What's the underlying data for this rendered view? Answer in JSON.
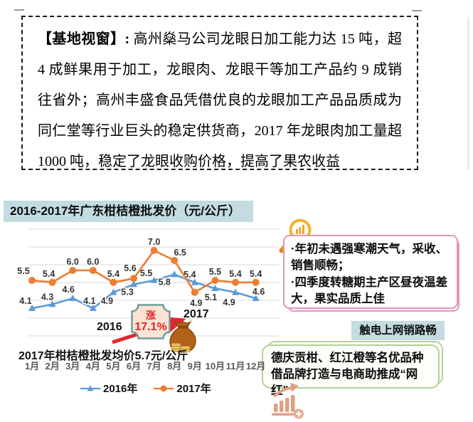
{
  "report_box": {
    "label": "【基地视窗】: ",
    "body": "高州燊马公司龙眼日加工能力达 15 吨，超 4 成鲜果用于加工，龙眼肉、龙眼干等加工产品约 9 成销往省外；高州丰盛食品凭借优良的龙眼加工产品品质成为同仁堂等行业巨头的稳定供货商，2017 年龙眼肉加工量超 1000 吨，稳定了龙眼收购价格，提高了果农收益"
  },
  "chart": {
    "title": "2016-2017年广东柑桔橙批发价（元/公斤）",
    "avg_note": "2017年柑桔橙批发均价5.7元/公斤",
    "rise_badge": {
      "word": "涨",
      "value": "17.1%"
    },
    "year_from": "2016",
    "year_to": "2017"
  },
  "chart_data": {
    "type": "line",
    "title": "2016-2017年广东柑桔橙批发价（元/公斤）",
    "unit": "元/公斤",
    "categories": [
      "1月",
      "2月",
      "3月",
      "4月",
      "5月",
      "6月",
      "7月",
      "8月",
      "9月",
      "10月",
      "11月",
      "12月"
    ],
    "series": [
      {
        "name": "2016年",
        "color": "#5b9bd5",
        "marker": "triangle",
        "values": [
          4.1,
          4.3,
          4.6,
          4.1,
          4.9,
          5.3,
          5.5,
          5.8,
          5.4,
          5.1,
          4.9,
          4.6
        ]
      },
      {
        "name": "2017年",
        "color": "#ed7d31",
        "marker": "circle",
        "values": [
          5.5,
          5.4,
          6.0,
          6.0,
          5.4,
          5.6,
          7.0,
          6.5,
          4.9,
          5.5,
          5.4,
          5.4
        ]
      }
    ],
    "ylim": [
      3.8,
      7.4
    ],
    "grid": true,
    "legend_position": "bottom",
    "annotations": [
      "2016",
      "2017",
      "涨 17.1%",
      "2017年柑桔橙批发均价5.7元/公斤"
    ]
  },
  "insight_box": {
    "bullets": [
      "·年初未遇强寒潮天气，采收、销售顺畅；",
      "·四季度转糖期主产区昼夜温差大，果实品质上佳"
    ]
  },
  "ecommerce": {
    "heading": "触电上网销路畅",
    "note": "德庆贡柑、红江橙等名优品种借品牌打造与电商助推成“网红”"
  },
  "icons": {
    "magnifier": "magnifier-chart-icon",
    "money_bag": "money-bag-icon",
    "growth": "growth-chart-icon"
  },
  "colors": {
    "series_2016": "#5b9bd5",
    "series_2017": "#ed7d31",
    "title_bg": "#c2dce0",
    "badge_bg": "#fbe3d4",
    "badge_border": "#6e9e9b",
    "badge_red": "#e02329",
    "arrow_red": "#e0282d",
    "pink_border": "#e394bb",
    "green_border": "#b5cf9b",
    "gridline": "#d9d9d9",
    "label_text": "#333333"
  }
}
